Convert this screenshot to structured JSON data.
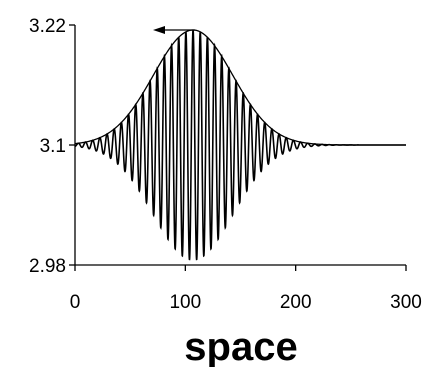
{
  "chart_data": {
    "type": "line",
    "title": "",
    "xlabel": "space",
    "ylabel": "",
    "xlim": [
      0,
      300
    ],
    "ylim": [
      2.98,
      3.22
    ],
    "x_ticks": [
      "0",
      "100",
      "200",
      "300"
    ],
    "y_ticks": [
      "2.98",
      "3.1",
      "3.22"
    ],
    "grid": false,
    "legend": "none",
    "annotation": "arrow pointing left above envelope peak",
    "series": [
      {
        "kind": "wave-packet",
        "baseline": 3.1,
        "center_x": 107,
        "peak_amplitude": 0.115,
        "envelope_width_sigma": 36,
        "wavelength": 6.5,
        "x_range": [
          0,
          300
        ]
      },
      {
        "kind": "envelope",
        "baseline": 3.1,
        "center_x": 107,
        "peak_y": 3.215,
        "envelope_width_sigma": 36,
        "x_range": [
          0,
          300
        ]
      }
    ],
    "colors": {
      "line": "#000000",
      "background": "#ffffff"
    }
  }
}
